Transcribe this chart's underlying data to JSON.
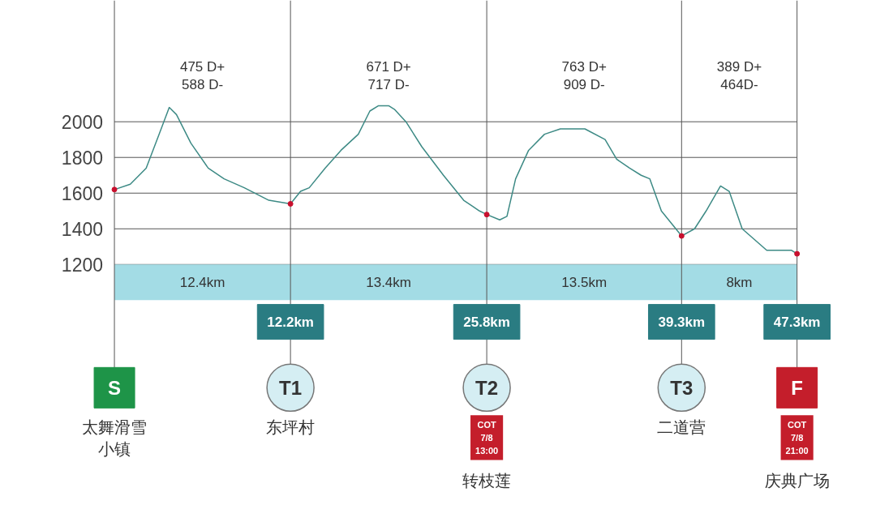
{
  "chart_data": {
    "type": "line",
    "xlim": [
      -7.9,
      52.8
    ],
    "ylim": [
      -150,
      2680
    ],
    "xticks": [
      {
        "value": 12.2,
        "label": "12.2km"
      },
      {
        "value": 25.8,
        "label": "25.8km"
      },
      {
        "value": 39.3,
        "label": "39.3km"
      },
      {
        "value": 47.3,
        "label": "47.3km"
      }
    ],
    "yticks": [
      1200,
      1400,
      1600,
      1800,
      2000
    ],
    "grid": "y",
    "x": [
      0,
      1.1,
      2.2,
      3.1,
      3.8,
      4.3,
      5.3,
      6.5,
      7.6,
      9.0,
      10.7,
      12.2,
      12.9,
      13.5,
      14.6,
      15.7,
      16.9,
      17.7,
      18.3,
      19.0,
      19.4,
      20.2,
      21.3,
      22.8,
      24.2,
      25.3,
      25.8,
      26.7,
      27.2,
      27.8,
      28.7,
      29.8,
      30.9,
      32.6,
      34.0,
      34.8,
      35.7,
      36.5,
      37.1,
      37.9,
      39.3,
      40.2,
      41.0,
      42.0,
      42.6,
      43.5,
      45.2,
      46.9,
      47.3
    ],
    "series": [
      {
        "color": "#3d8a85",
        "values": [
          1620,
          1650,
          1740,
          1930,
          2080,
          2040,
          1880,
          1740,
          1680,
          1630,
          1560,
          1540,
          1610,
          1630,
          1740,
          1840,
          1930,
          2060,
          2090,
          2090,
          2070,
          2000,
          1860,
          1700,
          1560,
          1500,
          1480,
          1450,
          1470,
          1680,
          1840,
          1930,
          1960,
          1960,
          1900,
          1790,
          1740,
          1700,
          1680,
          1500,
          1360,
          1400,
          1500,
          1640,
          1610,
          1400,
          1280,
          1280,
          1260
        ]
      },
      {
        "type": "scatter",
        "color": "#c8102e",
        "x": [
          0,
          12.2,
          25.8,
          39.3,
          47.3
        ],
        "values": [
          1620,
          1540,
          1480,
          1360,
          1260
        ]
      }
    ],
    "ref_lines": [
      {
        "axis": "x",
        "value": 0,
        "label": "S"
      },
      {
        "axis": "x",
        "value": 12.2,
        "label": "T1"
      },
      {
        "axis": "x",
        "value": 25.8,
        "label": "T2"
      },
      {
        "axis": "x",
        "value": 39.3,
        "label": "T3"
      },
      {
        "axis": "x",
        "value": 47.3,
        "label": "F"
      }
    ],
    "bands": [
      {
        "axis": "x",
        "from": 0,
        "to": 12.2,
        "label": "12.4km",
        "color": "#a3dce5"
      },
      {
        "axis": "x",
        "from": 12.2,
        "to": 25.8,
        "label": "13.4km",
        "color": "#a3dce5"
      },
      {
        "axis": "x",
        "from": 25.8,
        "to": 39.3,
        "label": "13.5km",
        "color": "#a3dce5"
      },
      {
        "axis": "x",
        "from": 39.3,
        "to": 47.3,
        "label": "8km",
        "color": "#a3dce5"
      }
    ],
    "annotations": [
      "475 D+\n588 D-",
      "671 D+\n717 D-",
      "763 D+\n909 D-",
      "389 D+\n464D-",
      "太舞滑雪小镇",
      "东坪村",
      "COT\n7/8\n13:00",
      "转枝莲",
      "二道营",
      "COT\n7/8\n21:00",
      "庆典广场"
    ]
  }
}
